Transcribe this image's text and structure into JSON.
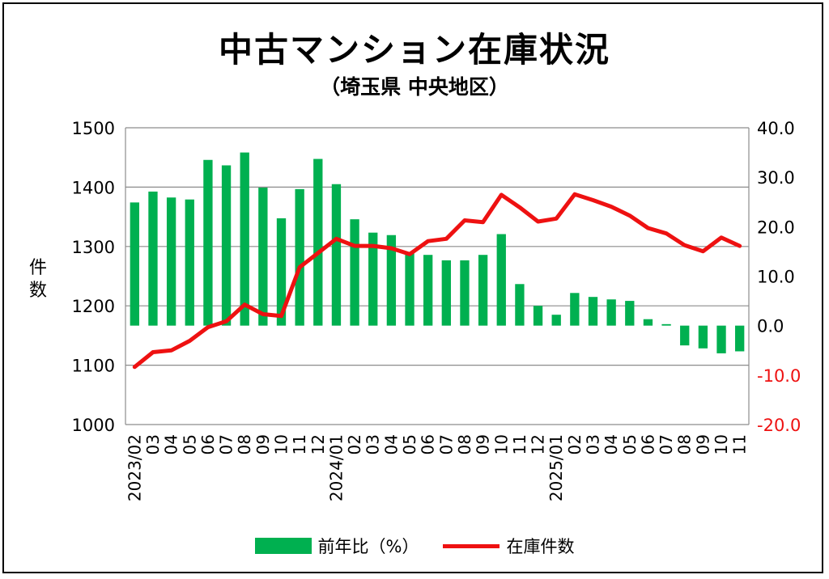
{
  "chart_data": {
    "type": "bar+line",
    "title": "中古マンション在庫状況",
    "subtitle": "（埼玉県 中央地区）",
    "ylabel": "件数",
    "categories": [
      "2023/02",
      "03",
      "04",
      "05",
      "06",
      "07",
      "08",
      "09",
      "10",
      "11",
      "12",
      "2024/01",
      "02",
      "03",
      "04",
      "05",
      "06",
      "07",
      "08",
      "09",
      "10",
      "11",
      "12",
      "2025/01",
      "02",
      "03",
      "04",
      "05",
      "06",
      "07",
      "08",
      "09",
      "10",
      "11"
    ],
    "series": [
      {
        "name": "前年比（%）",
        "type": "bar",
        "axis": "right",
        "color": "#00b050",
        "values": [
          24.9,
          27.1,
          25.9,
          25.5,
          33.5,
          32.4,
          35.0,
          27.9,
          21.7,
          27.6,
          33.7,
          28.6,
          21.5,
          18.8,
          18.3,
          14.9,
          14.3,
          13.2,
          13.2,
          14.3,
          18.5,
          8.4,
          4.0,
          2.2,
          6.6,
          5.8,
          5.3,
          5.0,
          1.3,
          0.3,
          -4.0,
          -4.6,
          -5.6,
          -5.2
        ]
      },
      {
        "name": "在庫件数",
        "type": "line",
        "axis": "left",
        "color": "#ee1111",
        "values": [
          1097,
          1122,
          1125,
          1141,
          1164,
          1174,
          1202,
          1186,
          1183,
          1265,
          1289,
          1313,
          1301,
          1301,
          1297,
          1287,
          1309,
          1313,
          1344,
          1341,
          1387,
          1366,
          1342,
          1347,
          1388,
          1378,
          1367,
          1352,
          1331,
          1322,
          1302,
          1292,
          1315,
          1301
        ]
      }
    ],
    "left_axis": {
      "min": 1000,
      "max": 1500,
      "ticks": [
        "1000",
        "1100",
        "1200",
        "1300",
        "1400",
        "1500"
      ]
    },
    "right_axis": {
      "min": -20,
      "max": 40,
      "ticks": [
        "-20.0",
        "-10.0",
        "0.0",
        "10.0",
        "20.0",
        "30.0",
        "40.0"
      ],
      "negative_color": "#ee1111",
      "positive_color": "#000000"
    },
    "grid": true,
    "legend_position": "bottom"
  },
  "legend": {
    "bar_label": "前年比（%）",
    "line_label": "在庫件数"
  }
}
